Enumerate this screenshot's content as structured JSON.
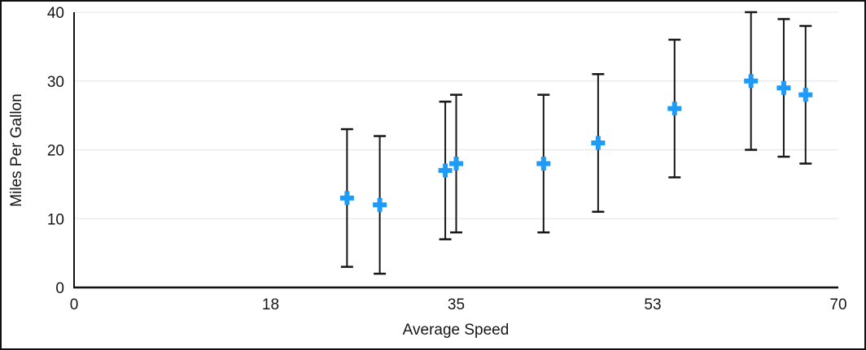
{
  "chart_data": {
    "type": "scatter",
    "title": "",
    "xlabel": "Average Speed",
    "ylabel": "Miles Per Gallon",
    "xlim": [
      0,
      70
    ],
    "ylim": [
      0,
      40
    ],
    "x_ticks": [
      0,
      18,
      35,
      53,
      70
    ],
    "y_ticks": [
      0,
      10,
      20,
      30,
      40
    ],
    "grid": "horizontal",
    "legend": "none",
    "marker": "plus",
    "error_bars": {
      "direction": "both",
      "style": "capped"
    },
    "points": [
      {
        "x": 25,
        "y": 13,
        "err": 10
      },
      {
        "x": 28,
        "y": 12,
        "err": 10
      },
      {
        "x": 34,
        "y": 17,
        "err": 10
      },
      {
        "x": 35,
        "y": 18,
        "err": 10
      },
      {
        "x": 43,
        "y": 18,
        "err": 10
      },
      {
        "x": 48,
        "y": 21,
        "err": 10
      },
      {
        "x": 55,
        "y": 26,
        "err": 10
      },
      {
        "x": 62,
        "y": 30,
        "err": 10
      },
      {
        "x": 65,
        "y": 29,
        "err": 10
      },
      {
        "x": 67,
        "y": 28,
        "err": 10
      }
    ],
    "colors": {
      "marker": "#1d9bf6",
      "error_bar": "#161616",
      "grid": "#e3e3e3",
      "axis": "#111111",
      "text": "#161616"
    }
  }
}
